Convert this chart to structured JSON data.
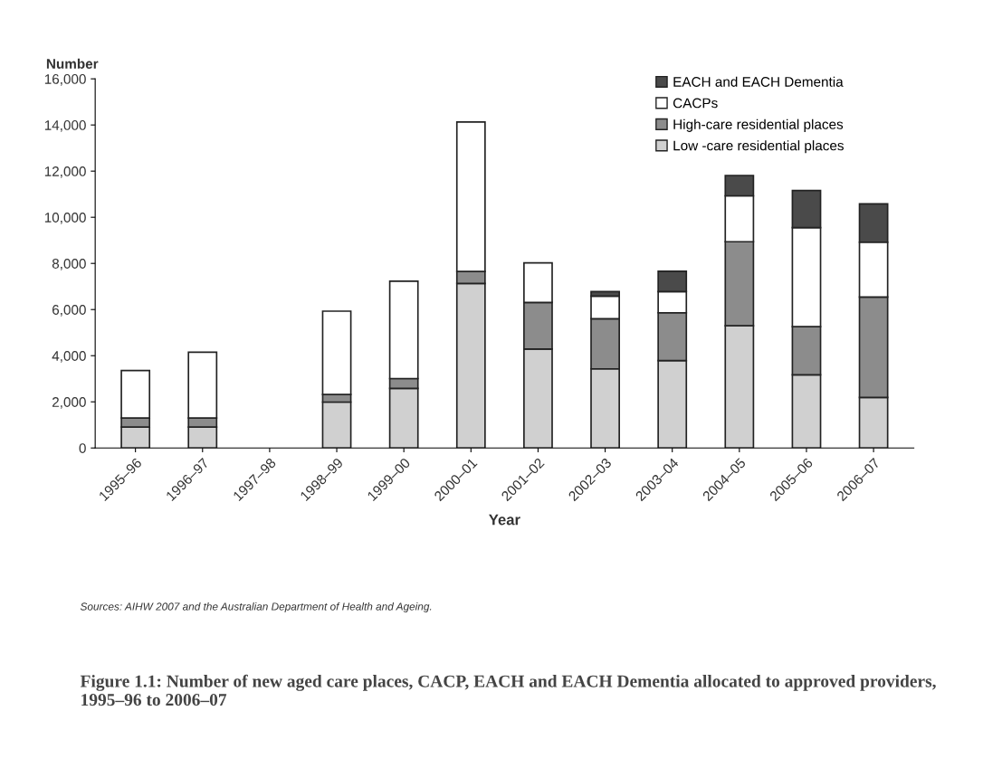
{
  "chart_data": {
    "type": "bar",
    "stacked": true,
    "title": "Figure 1.1: Number of new aged care places, CACP, EACH and EACH Dementia allocated to approved providers, 1995–96 to 2006–07",
    "ylabel": "Number",
    "xlabel": "Year",
    "categories": [
      "1995–96",
      "1996–97",
      "1997–98",
      "1998–99",
      "1999–00",
      "2000–01",
      "2001–02",
      "2002–03",
      "2003–04",
      "2004–05",
      "2005–06",
      "2006–07"
    ],
    "series": [
      {
        "name": "Low -care residential places",
        "color": "#d0d0d0",
        "values": [
          910,
          910,
          null,
          1990,
          2580,
          7130,
          4290,
          3430,
          3790,
          5300,
          3170,
          2190
        ]
      },
      {
        "name": "High-care residential places",
        "color": "#8c8c8c",
        "values": [
          390,
          390,
          null,
          330,
          430,
          520,
          2020,
          2170,
          2070,
          3640,
          2090,
          4350
        ]
      },
      {
        "name": "CACPs",
        "color": "#ffffff",
        "values": [
          2060,
          2850,
          null,
          3610,
          4220,
          6480,
          1710,
          980,
          920,
          1990,
          4290,
          2380
        ]
      },
      {
        "name": "EACH and EACH Dementia",
        "color": "#4a4a4a",
        "values": [
          null,
          null,
          null,
          null,
          null,
          null,
          null,
          200,
          880,
          880,
          1610,
          1660
        ]
      }
    ],
    "ylim": [
      0,
      16000
    ],
    "yticks": [
      0,
      {
        "value": 2000,
        "label": "2,000"
      },
      {
        "value": 4000,
        "label": "4,000"
      },
      {
        "value": 6000,
        "label": "6,000"
      },
      {
        "value": 8000,
        "label": "8,000"
      },
      {
        "value": 10000,
        "label": "10,000"
      },
      {
        "value": 12000,
        "label": "12,000"
      },
      {
        "value": 14000,
        "label": "14,000"
      },
      {
        "value": 16000,
        "label": "16,000"
      }
    ],
    "grid": false,
    "legend": "top right",
    "annotations": [
      "Sources: AIHW 2007 and the Australian Department of Health and Ageing."
    ]
  }
}
